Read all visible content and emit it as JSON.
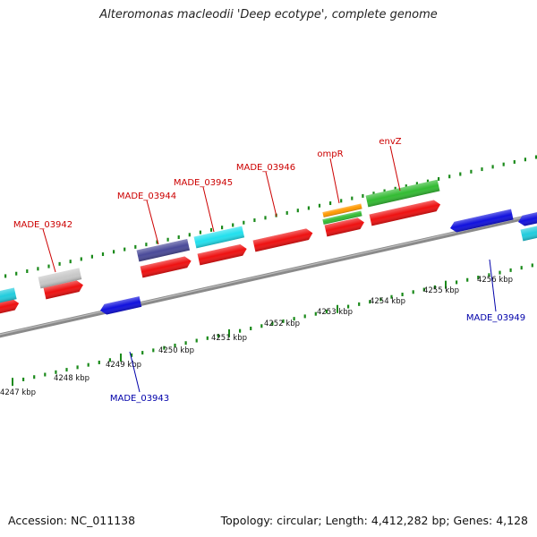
{
  "title": "Alteromonas macleodii 'Deep ecotype', complete genome",
  "footer": {
    "accession": "Accession: NC_011138",
    "topology": "Topology: circular; Length: 4,412,282 bp; Genes: 4,128"
  },
  "colors": {
    "backbone": "#8a8a8a",
    "tick": "#1a8a1a",
    "label_forward": "#cc0000",
    "label_reverse": "#0000aa"
  },
  "kbp_labels": [
    {
      "text": "4247 kbp",
      "kbp": 4247
    },
    {
      "text": "4248 kbp",
      "kbp": 4248
    },
    {
      "text": "4249 kbp",
      "kbp": 4249
    },
    {
      "text": "4250 kbp",
      "kbp": 4250
    },
    {
      "text": "4251 kbp",
      "kbp": 4251
    },
    {
      "text": "4252 kbp",
      "kbp": 4252
    },
    {
      "text": "4253 kbp",
      "kbp": 4253
    },
    {
      "text": "4254 kbp",
      "kbp": 4254
    },
    {
      "text": "4255 kbp",
      "kbp": 4255
    },
    {
      "text": "4256 kbp",
      "kbp": 4256
    }
  ],
  "gene_labels": [
    {
      "text": "MADE_03942",
      "strand": "forward"
    },
    {
      "text": "MADE_03944",
      "strand": "forward"
    },
    {
      "text": "MADE_03945",
      "strand": "forward"
    },
    {
      "text": "MADE_03946",
      "strand": "forward"
    },
    {
      "text": "ompR",
      "strand": "forward"
    },
    {
      "text": "envZ",
      "strand": "forward"
    },
    {
      "text": "MADE_03943",
      "strand": "reverse"
    },
    {
      "text": "MADE_03949",
      "strand": "reverse"
    }
  ],
  "features": [
    {
      "track": "cds_forward",
      "strand": "forward",
      "color": "#ee1111"
    },
    {
      "track": "cds_forward",
      "strand": "forward",
      "color": "#ee1111"
    },
    {
      "track": "cds_forward",
      "strand": "forward",
      "color": "#ee1111"
    },
    {
      "track": "cds_forward",
      "strand": "forward",
      "color": "#ee1111"
    },
    {
      "track": "cds_forward",
      "strand": "forward",
      "color": "#ee1111"
    },
    {
      "track": "cds_forward",
      "strand": "forward",
      "color": "#ee1111"
    },
    {
      "track": "cds_forward",
      "strand": "forward",
      "color": "#ee1111"
    },
    {
      "track": "cds_forward",
      "strand": "forward",
      "color": "#ee1111"
    },
    {
      "track": "cog_forward",
      "strand": "forward",
      "color": "#22ccdd"
    },
    {
      "track": "cog_forward",
      "strand": "forward",
      "color": "#c8c8c8"
    },
    {
      "track": "cog_forward",
      "strand": "forward",
      "color": "#4a4a99"
    },
    {
      "track": "cog_forward",
      "strand": "forward",
      "color": "#22e0ee"
    },
    {
      "track": "cog_forward",
      "strand": "forward",
      "color": "#ff9900"
    },
    {
      "track": "cog_forward",
      "strand": "forward",
      "color": "#33bb33"
    },
    {
      "track": "cog_forward",
      "strand": "forward",
      "color": "#33bb33"
    },
    {
      "track": "cog_forward",
      "strand": "forward",
      "color": "#22ccdd"
    },
    {
      "track": "cds_reverse",
      "strand": "reverse",
      "color": "#1111dd"
    },
    {
      "track": "cds_reverse",
      "strand": "reverse",
      "color": "#1111dd"
    },
    {
      "track": "cds_reverse",
      "strand": "reverse",
      "color": "#1111dd"
    }
  ]
}
